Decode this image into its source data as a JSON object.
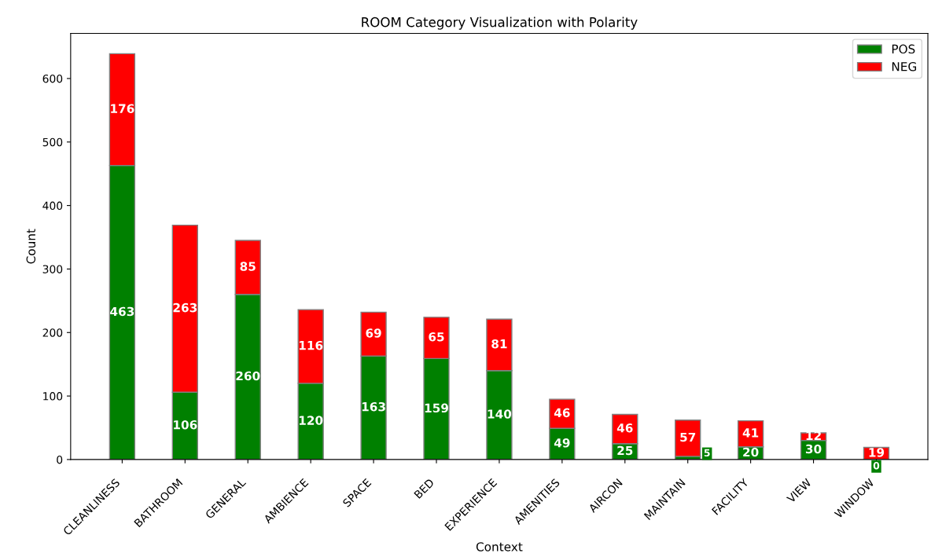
{
  "chart_data": {
    "type": "bar",
    "title": "ROOM Category Visualization with Polarity",
    "xlabel": "Context",
    "ylabel": "Count",
    "categories": [
      "CLEANLINESS",
      "BATHROOM",
      "GENERAL",
      "AMBIENCE",
      "SPACE",
      "BED",
      "EXPERIENCE",
      "AMENITIES",
      "AIRCON",
      "MAINTAIN",
      "FACILITY",
      "VIEW",
      "WINDOW"
    ],
    "series": [
      {
        "name": "POS",
        "color": "#008000",
        "values": [
          463,
          106,
          260,
          120,
          163,
          159,
          140,
          49,
          25,
          5,
          20,
          30,
          0
        ]
      },
      {
        "name": "NEG",
        "color": "#ff0000",
        "values": [
          176,
          263,
          85,
          116,
          69,
          65,
          81,
          46,
          46,
          57,
          41,
          12,
          19
        ]
      }
    ],
    "stacked": true,
    "data_labels": true,
    "ylim": [
      0,
      671
    ],
    "yticks": [
      0,
      100,
      200,
      300,
      400,
      500,
      600
    ],
    "grid": false,
    "legend": "top right"
  }
}
